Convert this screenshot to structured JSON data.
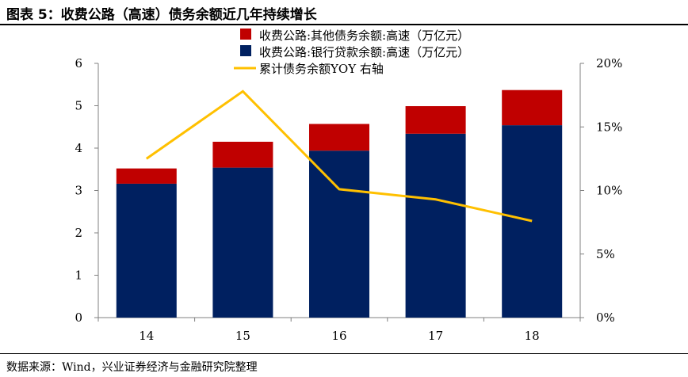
{
  "figure_title": "图表 5：收费公路（高速）债务余额近几年持续增长",
  "source_note": "数据来源：Wind，兴业证券经济与金融研究院整理",
  "chart_data": {
    "type": "bar",
    "stacked": true,
    "categories": [
      "14",
      "15",
      "16",
      "17",
      "18"
    ],
    "series": [
      {
        "name": "收费公路:银行贷款余额:高速（万亿元）",
        "kind": "bar",
        "axis": "left",
        "color": "#002060",
        "values": [
          3.16,
          3.54,
          3.94,
          4.34,
          4.54
        ]
      },
      {
        "name": "收费公路:其他债务余额:高速（万亿元）",
        "kind": "bar",
        "axis": "left",
        "color": "#C00000",
        "values": [
          0.36,
          0.61,
          0.63,
          0.65,
          0.83
        ]
      },
      {
        "name": "累计债务余额YOY  右轴",
        "kind": "line",
        "axis": "right",
        "color": "#FFC000",
        "values": [
          12.5,
          17.8,
          10.1,
          9.3,
          7.6
        ]
      }
    ],
    "legend_order": [
      1,
      0,
      2
    ],
    "legend_position": "top-center",
    "y_left": {
      "min": 0,
      "max": 6,
      "ticks": [
        "0",
        "1",
        "2",
        "3",
        "4",
        "5",
        "6"
      ]
    },
    "y_right": {
      "min": 0,
      "max": 20,
      "ticks": [
        "0%",
        "5%",
        "10%",
        "15%",
        "20%"
      ]
    },
    "grid": false
  }
}
